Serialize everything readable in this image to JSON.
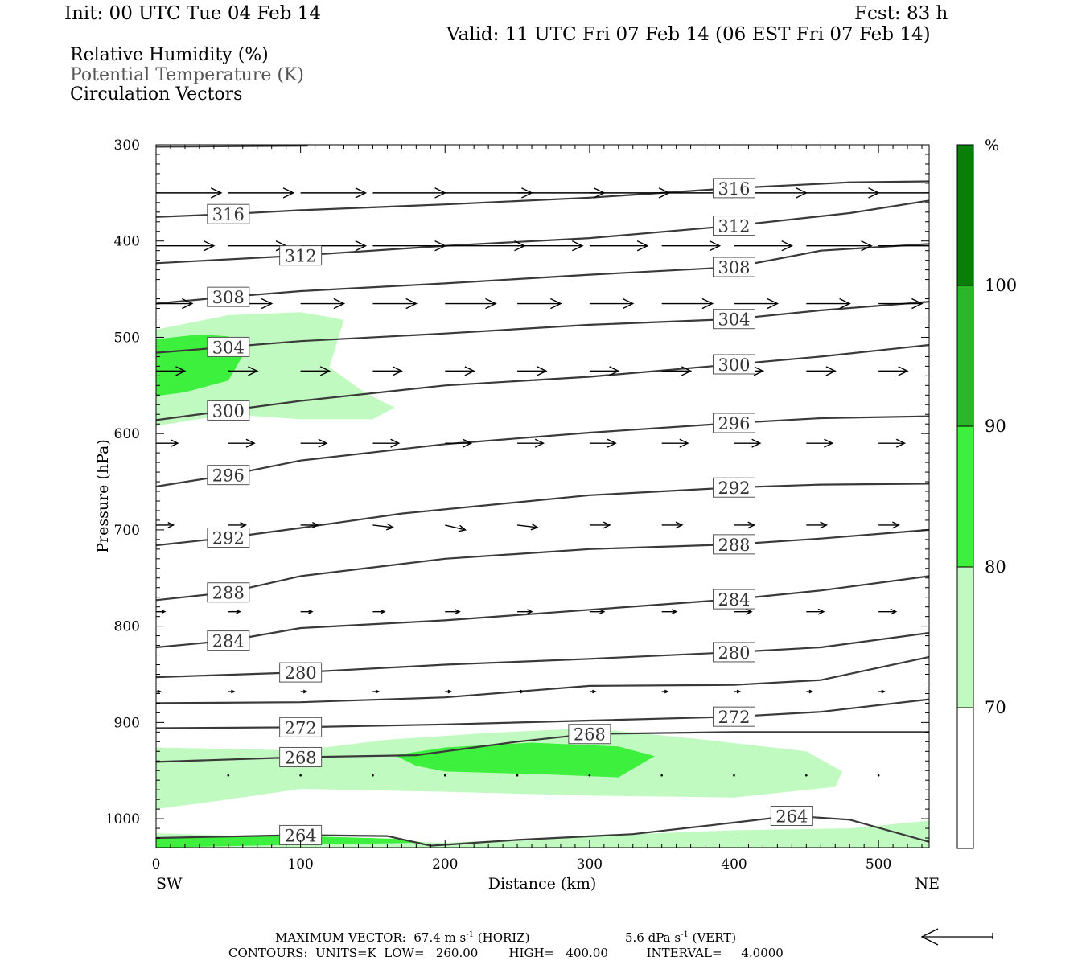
{
  "header": {
    "init": "Init: 00 UTC Tue 04 Feb 14",
    "fcst": "Fcst:   83 h",
    "valid": "Valid: 11 UTC Fri 07 Feb 14 (06 EST Fri 07 Feb 14)"
  },
  "legend": {
    "rh": "Relative Humidity (%)",
    "theta": "Potential Temperature (K)",
    "vectors": "Circulation Vectors"
  },
  "chart_data": {
    "type": "cross-section",
    "xlabel": "Distance (km)",
    "ylabel": "Pressure (hPa)",
    "xlim": [
      0,
      535
    ],
    "ylim": [
      1030,
      300
    ],
    "y_scale": "linear (pressure, inverted)",
    "x_ticks": [
      0,
      100,
      200,
      300,
      400,
      500
    ],
    "y_ticks": [
      300,
      400,
      500,
      600,
      700,
      800,
      900,
      1000
    ],
    "x_end_labels": {
      "left": "SW",
      "right": "NE"
    },
    "theta_contours": [
      {
        "value": 320,
        "label": null,
        "points": [
          [
            0,
            302
          ],
          [
            105,
            301
          ]
        ]
      },
      {
        "value": 316,
        "label": "316",
        "points": [
          [
            0,
            375
          ],
          [
            50,
            372
          ],
          [
            100,
            368
          ],
          [
            200,
            362
          ],
          [
            300,
            355
          ],
          [
            350,
            350
          ],
          [
            400,
            345
          ],
          [
            480,
            339
          ],
          [
            535,
            338
          ]
        ]
      },
      {
        "value": 312,
        "label": "312",
        "points": [
          [
            0,
            423
          ],
          [
            100,
            415
          ],
          [
            200,
            405
          ],
          [
            300,
            397
          ],
          [
            400,
            384
          ],
          [
            480,
            371
          ],
          [
            535,
            358
          ]
        ]
      },
      {
        "value": 308,
        "label": "308",
        "points": [
          [
            0,
            465
          ],
          [
            50,
            458
          ],
          [
            100,
            452
          ],
          [
            200,
            444
          ],
          [
            300,
            435
          ],
          [
            400,
            427
          ],
          [
            460,
            410
          ],
          [
            535,
            403
          ]
        ]
      },
      {
        "value": 304,
        "label": "304",
        "points": [
          [
            0,
            516
          ],
          [
            50,
            510
          ],
          [
            100,
            504
          ],
          [
            200,
            496
          ],
          [
            300,
            487
          ],
          [
            400,
            481
          ],
          [
            460,
            472
          ],
          [
            535,
            463
          ]
        ]
      },
      {
        "value": 300,
        "label": "300",
        "points": [
          [
            0,
            586
          ],
          [
            50,
            576
          ],
          [
            100,
            566
          ],
          [
            200,
            550
          ],
          [
            300,
            541
          ],
          [
            400,
            528
          ],
          [
            460,
            520
          ],
          [
            535,
            508
          ]
        ]
      },
      {
        "value": 296,
        "label": "296",
        "points": [
          [
            0,
            655
          ],
          [
            50,
            643
          ],
          [
            100,
            628
          ],
          [
            200,
            611
          ],
          [
            300,
            599
          ],
          [
            400,
            589
          ],
          [
            460,
            584
          ],
          [
            535,
            582
          ]
        ]
      },
      {
        "value": 292,
        "label": "292",
        "points": [
          [
            0,
            716
          ],
          [
            50,
            708
          ],
          [
            100,
            698
          ],
          [
            170,
            683
          ],
          [
            300,
            664
          ],
          [
            400,
            656
          ],
          [
            460,
            653
          ],
          [
            535,
            652
          ]
        ]
      },
      {
        "value": 288,
        "label": "288",
        "points": [
          [
            0,
            773
          ],
          [
            50,
            765
          ],
          [
            100,
            748
          ],
          [
            200,
            730
          ],
          [
            300,
            720
          ],
          [
            400,
            715
          ],
          [
            460,
            709
          ],
          [
            535,
            700
          ]
        ]
      },
      {
        "value": 284,
        "label": "284",
        "points": [
          [
            0,
            822
          ],
          [
            50,
            815
          ],
          [
            100,
            802
          ],
          [
            200,
            794
          ],
          [
            300,
            783
          ],
          [
            400,
            772
          ],
          [
            460,
            763
          ],
          [
            535,
            748
          ]
        ]
      },
      {
        "value": 280,
        "label": "280",
        "points": [
          [
            0,
            853
          ],
          [
            100,
            848
          ],
          [
            200,
            840
          ],
          [
            300,
            834
          ],
          [
            400,
            827
          ],
          [
            460,
            822
          ],
          [
            535,
            807
          ]
        ]
      },
      {
        "value": 276,
        "label": null,
        "points": [
          [
            0,
            880
          ],
          [
            100,
            879
          ],
          [
            200,
            874
          ],
          [
            300,
            862
          ],
          [
            400,
            861
          ],
          [
            460,
            856
          ],
          [
            535,
            832
          ]
        ]
      },
      {
        "value": 272,
        "label": "272",
        "points": [
          [
            0,
            906
          ],
          [
            100,
            905
          ],
          [
            200,
            902
          ],
          [
            300,
            898
          ],
          [
            400,
            894
          ],
          [
            460,
            889
          ],
          [
            535,
            876
          ]
        ]
      },
      {
        "value": 268,
        "label": "268",
        "points": [
          [
            0,
            941
          ],
          [
            100,
            936
          ],
          [
            180,
            934
          ],
          [
            250,
            920
          ],
          [
            300,
            912
          ],
          [
            400,
            910
          ],
          [
            535,
            910
          ]
        ]
      },
      {
        "value": 264,
        "label": "264",
        "points": [
          [
            0,
            1020
          ],
          [
            100,
            1017
          ],
          [
            160,
            1018
          ],
          [
            190,
            1028
          ],
          [
            250,
            1022
          ],
          [
            330,
            1016
          ],
          [
            400,
            1004
          ],
          [
            440,
            997
          ],
          [
            480,
            1001
          ],
          [
            535,
            1024
          ]
        ]
      }
    ],
    "rh_levels": [
      70,
      80,
      90,
      100
    ],
    "rh_colorbar": {
      "title": "%",
      "labels": [
        "100",
        "90",
        "80",
        "70"
      ],
      "colors": [
        "#097f09",
        "#2ab82a",
        "#3ef03e",
        "#c0fac0",
        "#ffffff"
      ]
    },
    "rh_regions": [
      {
        "level": 70,
        "polygon": [
          [
            0,
            492
          ],
          [
            50,
            477
          ],
          [
            100,
            474
          ],
          [
            120,
            479
          ],
          [
            130,
            482
          ],
          [
            120,
            531
          ],
          [
            145,
            558
          ],
          [
            165,
            573
          ],
          [
            150,
            585
          ],
          [
            100,
            585
          ],
          [
            50,
            580
          ],
          [
            0,
            592
          ]
        ]
      },
      {
        "level": 80,
        "polygon": [
          [
            0,
            502
          ],
          [
            30,
            497
          ],
          [
            50,
            499
          ],
          [
            60,
            519
          ],
          [
            50,
            545
          ],
          [
            20,
            557
          ],
          [
            0,
            561
          ]
        ]
      },
      {
        "level": 70,
        "polygon": [
          [
            0,
            926
          ],
          [
            100,
            929
          ],
          [
            160,
            918
          ],
          [
            230,
            911
          ],
          [
            300,
            906
          ],
          [
            380,
            918
          ],
          [
            450,
            930
          ],
          [
            475,
            951
          ],
          [
            470,
            967
          ],
          [
            400,
            978
          ],
          [
            300,
            976
          ],
          [
            200,
            972
          ],
          [
            100,
            969
          ],
          [
            50,
            980
          ],
          [
            0,
            990
          ]
        ]
      },
      {
        "level": 80,
        "polygon": [
          [
            165,
            934
          ],
          [
            200,
            926
          ],
          [
            260,
            921
          ],
          [
            320,
            925
          ],
          [
            345,
            935
          ],
          [
            320,
            957
          ],
          [
            270,
            954
          ],
          [
            200,
            951
          ],
          [
            180,
            945
          ]
        ]
      },
      {
        "level": 70,
        "polygon": [
          [
            0,
            1015
          ],
          [
            100,
            1020
          ],
          [
            200,
            1025
          ],
          [
            300,
            1018
          ],
          [
            400,
            1012
          ],
          [
            480,
            1010
          ],
          [
            535,
            1002
          ],
          [
            535,
            1030
          ],
          [
            0,
            1030
          ]
        ]
      },
      {
        "level": 80,
        "polygon": [
          [
            0,
            1020
          ],
          [
            100,
            1018
          ],
          [
            170,
            1021
          ],
          [
            185,
            1025
          ],
          [
            100,
            1027
          ],
          [
            0,
            1030
          ]
        ]
      }
    ],
    "vector_rows": [
      {
        "p": 350,
        "x": [
          0,
          50,
          100,
          150,
          200,
          250,
          300,
          350,
          400,
          450,
          500
        ],
        "length_km": [
          45,
          45,
          45,
          50,
          60,
          60,
          55,
          55,
          50,
          50,
          55
        ],
        "slope": [
          0,
          0,
          0,
          0,
          0,
          0,
          0,
          0,
          0,
          0,
          0
        ]
      },
      {
        "p": 405,
        "x": [
          0,
          50,
          100,
          150,
          200,
          250,
          300,
          350,
          400,
          450,
          500
        ],
        "length_km": [
          40,
          40,
          45,
          50,
          55,
          45,
          40,
          40,
          40,
          45,
          45
        ],
        "slope": [
          0,
          0,
          0,
          0,
          0,
          0,
          0,
          0,
          0,
          0,
          0
        ]
      },
      {
        "p": 465,
        "x": [
          0,
          50,
          100,
          150,
          200,
          250,
          300,
          350,
          400,
          450,
          500
        ],
        "length_km": [
          25,
          30,
          30,
          30,
          35,
          30,
          30,
          35,
          30,
          30,
          30
        ],
        "slope": [
          0,
          0,
          0,
          0,
          0,
          0,
          0,
          0,
          0,
          0,
          0
        ]
      },
      {
        "p": 535,
        "x": [
          0,
          50,
          100,
          150,
          200,
          250,
          300,
          350,
          400,
          450,
          500
        ],
        "length_km": [
          20,
          20,
          20,
          20,
          20,
          20,
          20,
          20,
          20,
          20,
          20
        ],
        "slope": [
          0,
          0,
          0,
          0,
          0,
          0,
          0,
          0,
          0,
          0,
          0
        ]
      },
      {
        "p": 610,
        "x": [
          0,
          50,
          100,
          150,
          200,
          250,
          300,
          350,
          400,
          450,
          500
        ],
        "length_km": [
          15,
          18,
          18,
          18,
          18,
          18,
          18,
          18,
          18,
          18,
          18
        ],
        "slope": [
          0,
          0,
          0,
          0,
          0,
          0,
          0,
          0,
          0,
          0,
          0
        ]
      },
      {
        "p": 695,
        "x": [
          0,
          50,
          100,
          150,
          200,
          250,
          300,
          350,
          400,
          450,
          500
        ],
        "length_km": [
          12,
          12,
          12,
          14,
          14,
          14,
          14,
          14,
          14,
          14,
          14
        ],
        "slope": [
          0,
          0,
          0,
          3,
          6,
          3,
          0,
          0,
          0,
          0,
          0
        ]
      },
      {
        "p": 785,
        "x": [
          0,
          50,
          100,
          150,
          200,
          250,
          300,
          350,
          400,
          450,
          500
        ],
        "length_km": [
          6,
          8,
          8,
          8,
          10,
          10,
          10,
          10,
          12,
          12,
          12
        ],
        "slope": [
          0,
          0,
          0,
          0,
          0,
          0,
          0,
          0,
          0,
          0,
          0
        ]
      },
      {
        "p": 868,
        "x": [
          0,
          50,
          100,
          150,
          200,
          250,
          300,
          350,
          400,
          450,
          500
        ],
        "length_km": [
          3,
          4,
          4,
          4,
          4,
          4,
          4,
          4,
          4,
          4,
          4
        ],
        "slope": [
          0,
          0,
          0,
          0,
          0,
          0,
          0,
          0,
          0,
          0,
          0
        ]
      },
      {
        "p": 955,
        "x": [
          50,
          100,
          150,
          200,
          250,
          300,
          350,
          400,
          450,
          500
        ],
        "length_km": [
          1,
          1,
          1,
          1,
          1,
          1,
          1,
          1,
          1,
          1
        ],
        "slope": [
          0,
          0,
          0,
          0,
          0,
          0,
          0,
          0,
          0,
          0
        ]
      }
    ]
  },
  "footer": {
    "max_vector_prefix": "MAXIMUM VECTOR:",
    "horiz_value": "67.4 m s",
    "horiz_sup": "-1",
    "horiz_suffix": "(HORIZ)",
    "vert_value": "5.6 dPa s",
    "vert_sup": "-1",
    "vert_suffix": "(VERT)",
    "contours": "CONTOURS:  UNITS=K  LOW=   260.00        HIGH=   400.00          INTERVAL=     4.0000"
  }
}
